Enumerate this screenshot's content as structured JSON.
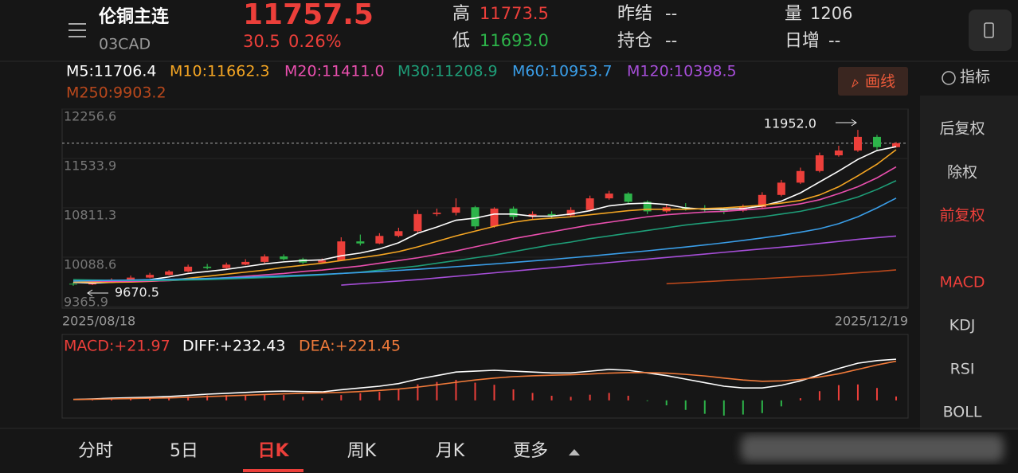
{
  "header": {
    "title": "伦铜主连",
    "code": "03CAD",
    "price": 11757.5,
    "change": 30.5,
    "change_pct": "0.26%",
    "high_label": "高",
    "high": 11773.5,
    "low_label": "低",
    "low": "11693.0",
    "settle_label": "昨结",
    "settle": "--",
    "oi_label": "持仓",
    "oi": "--",
    "vol_label": "量",
    "vol": 1206,
    "inc_label": "日增",
    "inc": "--"
  },
  "draw_button": "画线",
  "indicator_button": "指标",
  "sidebar": {
    "items": [
      "后复权",
      "除权",
      "前复权",
      "MACD",
      "KDJ",
      "RSI",
      "BOLL"
    ],
    "highlighted": [
      "前复权",
      "MACD"
    ]
  },
  "tabs": {
    "items": [
      "分时",
      "5日",
      "日K",
      "周K",
      "月K",
      "更多"
    ],
    "active": "日K"
  },
  "chart_data": [
    {
      "type": "candlestick",
      "categories": [
        "2025/08/18",
        null,
        null,
        null,
        null,
        null,
        null,
        null,
        null,
        null,
        null,
        null,
        null,
        null,
        null,
        null,
        null,
        null,
        null,
        null,
        null,
        null,
        null,
        null,
        null,
        null,
        null,
        null,
        null,
        null,
        null,
        null,
        null,
        null,
        null,
        null,
        null,
        null,
        null,
        null,
        null,
        null,
        null,
        "2025/12/19"
      ],
      "open": [
        9700,
        9690,
        9720,
        9760,
        9790,
        9830,
        9880,
        9950,
        9930,
        9980,
        10020,
        10100,
        10060,
        10010,
        10040,
        10320,
        10290,
        10400,
        10470,
        10720,
        10740,
        10820,
        10540,
        10800,
        10680,
        10720,
        10700,
        10780,
        10950,
        11020,
        10900,
        10760,
        10820,
        10800,
        10780,
        10770,
        10820,
        11000,
        11180,
        11350,
        11580,
        11650,
        11850,
        11700
      ],
      "close": [
        9690,
        9720,
        9760,
        9790,
        9830,
        9880,
        9950,
        9930,
        9980,
        10020,
        10100,
        10060,
        10010,
        10040,
        10320,
        10290,
        10400,
        10470,
        10720,
        10740,
        10820,
        10540,
        10800,
        10680,
        10720,
        10700,
        10780,
        10950,
        11020,
        10900,
        10760,
        10820,
        10800,
        10780,
        10770,
        10820,
        11000,
        11180,
        11350,
        11580,
        11650,
        11850,
        11700,
        11757.5
      ],
      "high": [
        9720,
        9740,
        9780,
        9820,
        9860,
        9900,
        9980,
        9990,
        10010,
        10060,
        10130,
        10130,
        10080,
        10070,
        10380,
        10420,
        10440,
        10520,
        10780,
        10800,
        10950,
        10840,
        10820,
        10830,
        10760,
        10760,
        10820,
        10990,
        11060,
        11040,
        10920,
        10870,
        10880,
        10850,
        10820,
        10860,
        11040,
        11220,
        11400,
        11620,
        11720,
        11952.0,
        11880,
        11773.5
      ],
      "low": [
        9670.5,
        9680,
        9710,
        9750,
        9780,
        9820,
        9870,
        9910,
        9920,
        9970,
        10000,
        10040,
        9990,
        10000,
        10030,
        10260,
        10280,
        10380,
        10450,
        10690,
        10700,
        10500,
        10520,
        10640,
        10650,
        10660,
        10680,
        10760,
        10930,
        10870,
        10720,
        10740,
        10770,
        10740,
        10720,
        10750,
        10800,
        10980,
        11160,
        11330,
        11560,
        11630,
        11660,
        11693.0
      ],
      "up_color": "#ec3f3a",
      "down_color": "#2db44a",
      "series": [
        {
          "name": "M5:11706.4",
          "color": "#ffffff",
          "values": [
            9720,
            9710,
            9720,
            9740,
            9760,
            9800,
            9850,
            9880,
            9910,
            9950,
            9990,
            10020,
            10040,
            10050,
            10110,
            10150,
            10210,
            10300,
            10440,
            10530,
            10630,
            10660,
            10720,
            10720,
            10690,
            10690,
            10720,
            10770,
            10840,
            10870,
            10880,
            10860,
            10810,
            10790,
            10790,
            10800,
            10840,
            10910,
            11030,
            11190,
            11350,
            11520,
            11650,
            11706.4
          ]
        },
        {
          "name": "M10:11662.3",
          "color": "#f5a623",
          "values": [
            9730,
            9725,
            9720,
            9725,
            9735,
            9750,
            9780,
            9810,
            9840,
            9870,
            9900,
            9940,
            9970,
            10000,
            10040,
            10080,
            10120,
            10170,
            10240,
            10320,
            10400,
            10470,
            10540,
            10600,
            10640,
            10660,
            10680,
            10710,
            10740,
            10770,
            10790,
            10790,
            10790,
            10800,
            10810,
            10830,
            10850,
            10880,
            10920,
            11000,
            11120,
            11280,
            11450,
            11662.3
          ]
        },
        {
          "name": "M20:11411.0",
          "color": "#e94fae",
          "values": [
            9745,
            9740,
            9735,
            9735,
            9740,
            9745,
            9760,
            9770,
            9790,
            9810,
            9830,
            9850,
            9880,
            9900,
            9930,
            9960,
            10000,
            10040,
            10080,
            10130,
            10180,
            10240,
            10300,
            10360,
            10410,
            10460,
            10510,
            10560,
            10600,
            10640,
            10680,
            10710,
            10730,
            10750,
            10760,
            10780,
            10800,
            10830,
            10870,
            10930,
            11020,
            11120,
            11250,
            11411.0
          ]
        },
        {
          "name": "M30:11208.9",
          "color": "#1e9e78",
          "values": [
            9760,
            9755,
            9750,
            9748,
            9748,
            9750,
            9755,
            9760,
            9770,
            9780,
            9790,
            9800,
            9815,
            9830,
            9850,
            9870,
            9900,
            9930,
            9960,
            10000,
            10040,
            10080,
            10120,
            10170,
            10220,
            10270,
            10310,
            10360,
            10400,
            10440,
            10480,
            10520,
            10560,
            10590,
            10620,
            10650,
            10680,
            10720,
            10760,
            10820,
            10890,
            10970,
            11080,
            11208.9
          ]
        },
        {
          "name": "M60:10953.7",
          "color": "#3a9ee8",
          "values": [
            9740,
            9745,
            9750,
            9755,
            9760,
            9765,
            9770,
            9778,
            9786,
            9795,
            9805,
            9815,
            9826,
            9838,
            9850,
            9865,
            9880,
            9896,
            9912,
            9930,
            9950,
            9970,
            9990,
            10012,
            10034,
            10056,
            10080,
            10104,
            10130,
            10156,
            10182,
            10210,
            10238,
            10268,
            10300,
            10334,
            10370,
            10410,
            10455,
            10505,
            10580,
            10680,
            10810,
            10953.7
          ]
        },
        {
          "name": "M120:10398.5",
          "color": "#a64ed8",
          "values": [
            null,
            null,
            null,
            null,
            null,
            null,
            null,
            null,
            null,
            null,
            null,
            null,
            null,
            null,
            9680,
            9700,
            9720,
            9740,
            9760,
            9785,
            9810,
            9835,
            9860,
            9885,
            9910,
            9935,
            9960,
            9985,
            10010,
            10035,
            10060,
            10085,
            10110,
            10135,
            10160,
            10185,
            10210,
            10235,
            10260,
            10290,
            10320,
            10350,
            10375,
            10398.5
          ]
        },
        {
          "name": "M250:9903.2",
          "color": "#b9481c",
          "values": [
            null,
            null,
            null,
            null,
            null,
            null,
            null,
            null,
            null,
            null,
            null,
            null,
            null,
            null,
            null,
            null,
            null,
            null,
            null,
            null,
            null,
            null,
            null,
            null,
            null,
            null,
            null,
            null,
            null,
            null,
            null,
            9700,
            9715,
            9730,
            9745,
            9760,
            9775,
            9790,
            9805,
            9820,
            9840,
            9860,
            9880,
            9903.2
          ]
        }
      ],
      "last_price": 11757.5,
      "annotations": [
        {
          "value": 11952.0,
          "label": "11952.0"
        },
        {
          "value": 9670.5,
          "label": "9670.5"
        }
      ],
      "ylim": [
        9365.9,
        12256.6
      ],
      "yticks": [
        12256.6,
        11533.9,
        10811.3,
        10088.6,
        9365.9
      ]
    },
    {
      "type": "macd",
      "ylim": [
        -100,
        260
      ],
      "series": [
        {
          "name": "MACD:+21.97",
          "color": "#ec3f3a",
          "neg_color": "#2db44a",
          "values": [
            0,
            4,
            8,
            10,
            12,
            16,
            22,
            28,
            30,
            32,
            34,
            30,
            20,
            12,
            30,
            40,
            48,
            62,
            90,
            104,
            116,
            100,
            88,
            62,
            42,
            26,
            20,
            32,
            42,
            26,
            -4,
            -28,
            -54,
            -76,
            -86,
            -80,
            -72,
            -34,
            12,
            52,
            86,
            90,
            70,
            21.97
          ]
        },
        {
          "name": "DIFF:+232.43",
          "color": "#ffffff",
          "values": [
            5,
            8,
            12,
            15,
            18,
            22,
            28,
            35,
            40,
            45,
            50,
            52,
            50,
            48,
            60,
            70,
            80,
            95,
            120,
            140,
            160,
            165,
            170,
            165,
            160,
            155,
            155,
            165,
            175,
            170,
            155,
            140,
            120,
            100,
            80,
            70,
            70,
            85,
            110,
            145,
            180,
            210,
            225,
            232.43
          ]
        },
        {
          "name": "DEA:+221.45",
          "color": "#f07a3a",
          "values": [
            5,
            6,
            8,
            10,
            12,
            14,
            17,
            21,
            25,
            29,
            33,
            37,
            40,
            42,
            45,
            50,
            56,
            64,
            75,
            88,
            102,
            115,
            126,
            134,
            139,
            142,
            145,
            149,
            154,
            157,
            157,
            154,
            147,
            138,
            126,
            115,
            108,
            110,
            118,
            132,
            150,
            175,
            200,
            221.45
          ]
        }
      ]
    }
  ]
}
